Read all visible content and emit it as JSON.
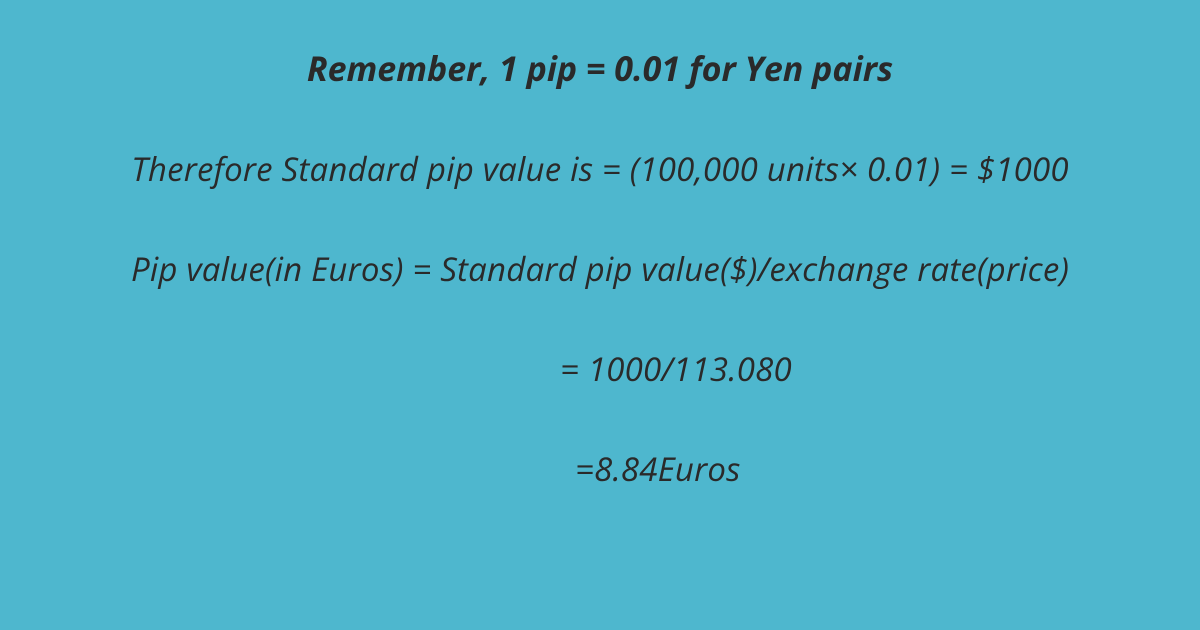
{
  "background_color": "#4eb7ce",
  "text_color": "#2a2a2a",
  "heading": {
    "text": "Remember, 1 pip = 0.01 for Yen pairs",
    "fontsize": 34,
    "fontweight": "bold",
    "fontstyle": "italic"
  },
  "lines": [
    {
      "text": "Therefore Standard pip value is =   (100,000 units× 0.01) = $1000",
      "fontsize": 33,
      "fontstyle": "italic"
    },
    {
      "text": "Pip value(in Euros)  =  Standard pip value($)/exchange rate(price)",
      "fontsize": 33,
      "fontstyle": "italic"
    },
    {
      "text": "= 1000/113.080",
      "fontsize": 33,
      "fontstyle": "italic"
    },
    {
      "text": "=8.84Euros",
      "fontsize": 33,
      "fontstyle": "italic"
    }
  ]
}
